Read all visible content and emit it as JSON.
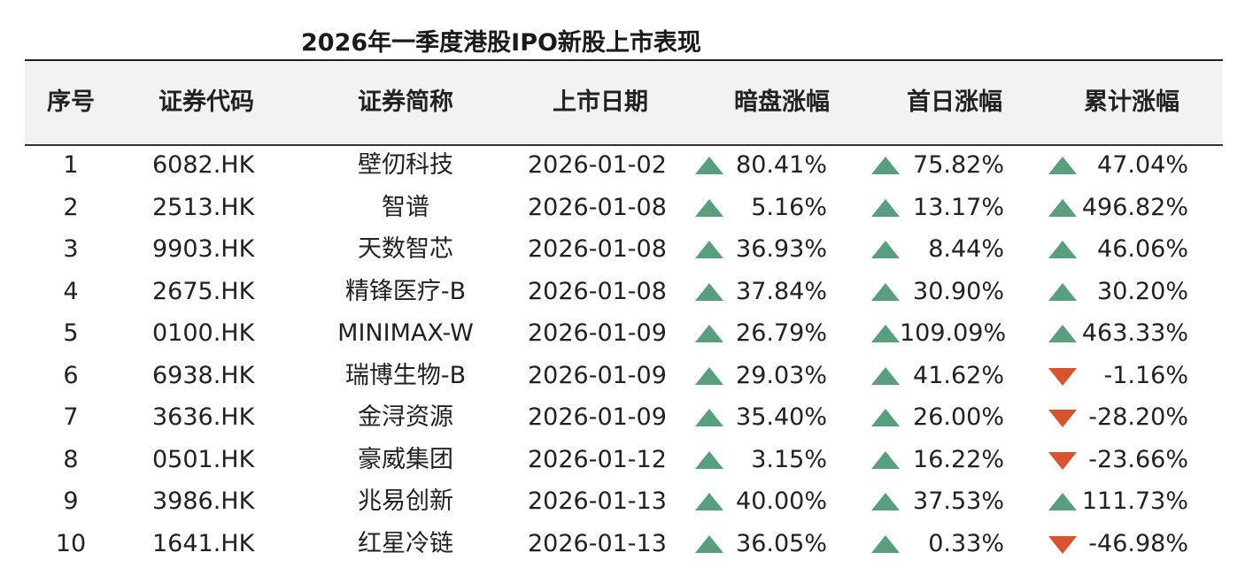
{
  "title": "2026年一季度港股IPO新股上市表现",
  "colors": {
    "up": "#5a9e80",
    "down": "#d9542c",
    "header_bg": "#f2f2f2"
  },
  "columns": [
    "序号",
    "证券代码",
    "证券简称",
    "上市日期",
    "暗盘涨幅",
    "首日涨幅",
    "累计涨幅"
  ],
  "rows": [
    {
      "no": "1",
      "code": "6082.HK",
      "name": "壁仞科技",
      "date": "2026-01-02",
      "dark": "80.41%",
      "dark_dir": "up",
      "first": "75.82%",
      "first_dir": "up",
      "cum": "47.04%",
      "cum_dir": "up"
    },
    {
      "no": "2",
      "code": "2513.HK",
      "name": "智谱",
      "date": "2026-01-08",
      "dark": "5.16%",
      "dark_dir": "up",
      "first": "13.17%",
      "first_dir": "up",
      "cum": "496.82%",
      "cum_dir": "up"
    },
    {
      "no": "3",
      "code": "9903.HK",
      "name": "天数智芯",
      "date": "2026-01-08",
      "dark": "36.93%",
      "dark_dir": "up",
      "first": "8.44%",
      "first_dir": "up",
      "cum": "46.06%",
      "cum_dir": "up"
    },
    {
      "no": "4",
      "code": "2675.HK",
      "name": "精锋医疗-B",
      "date": "2026-01-08",
      "dark": "37.84%",
      "dark_dir": "up",
      "first": "30.90%",
      "first_dir": "up",
      "cum": "30.20%",
      "cum_dir": "up"
    },
    {
      "no": "5",
      "code": "0100.HK",
      "name": "MINIMAX-W",
      "date": "2026-01-09",
      "dark": "26.79%",
      "dark_dir": "up",
      "first": "109.09%",
      "first_dir": "up",
      "cum": "463.33%",
      "cum_dir": "up"
    },
    {
      "no": "6",
      "code": "6938.HK",
      "name": "瑞博生物-B",
      "date": "2026-01-09",
      "dark": "29.03%",
      "dark_dir": "up",
      "first": "41.62%",
      "first_dir": "up",
      "cum": "-1.16%",
      "cum_dir": "down"
    },
    {
      "no": "7",
      "code": "3636.HK",
      "name": "金浔资源",
      "date": "2026-01-09",
      "dark": "35.40%",
      "dark_dir": "up",
      "first": "26.00%",
      "first_dir": "up",
      "cum": "-28.20%",
      "cum_dir": "down"
    },
    {
      "no": "8",
      "code": "0501.HK",
      "name": "豪威集团",
      "date": "2026-01-12",
      "dark": "3.15%",
      "dark_dir": "up",
      "first": "16.22%",
      "first_dir": "up",
      "cum": "-23.66%",
      "cum_dir": "down"
    },
    {
      "no": "9",
      "code": "3986.HK",
      "name": "兆易创新",
      "date": "2026-01-13",
      "dark": "40.00%",
      "dark_dir": "up",
      "first": "37.53%",
      "first_dir": "up",
      "cum": "111.73%",
      "cum_dir": "up"
    },
    {
      "no": "10",
      "code": "1641.HK",
      "name": "红星冷链",
      "date": "2026-01-13",
      "dark": "36.05%",
      "dark_dir": "up",
      "first": "0.33%",
      "first_dir": "up",
      "cum": "-46.98%",
      "cum_dir": "down"
    }
  ]
}
